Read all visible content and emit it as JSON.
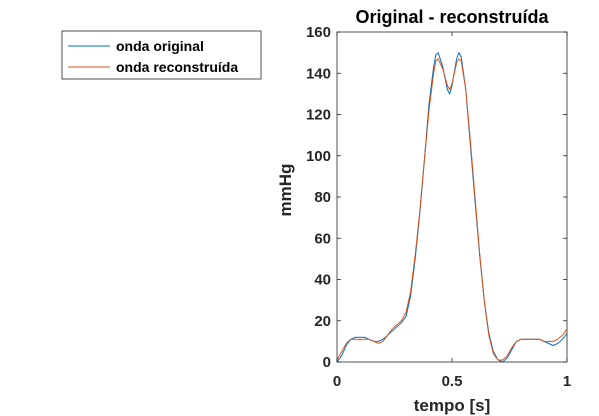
{
  "chart_data": {
    "type": "line",
    "title": "Original - reconstruída",
    "xlabel": "tempo [s]",
    "ylabel": "mmHg",
    "xlim": [
      0,
      1
    ],
    "ylim": [
      0,
      160
    ],
    "xticks": [
      0,
      0.5,
      1
    ],
    "xtick_labels": [
      "0",
      "0.5",
      "1"
    ],
    "yticks": [
      0,
      20,
      40,
      60,
      80,
      100,
      120,
      140,
      160
    ],
    "ytick_labels": [
      "0",
      "20",
      "40",
      "60",
      "80",
      "100",
      "120",
      "140",
      "160"
    ],
    "grid": false,
    "legend_position": "outside-left",
    "series": [
      {
        "name": "onda original",
        "color": "#0072BD",
        "x": [
          0,
          0.02,
          0.04,
          0.06,
          0.08,
          0.1,
          0.12,
          0.14,
          0.16,
          0.18,
          0.2,
          0.22,
          0.24,
          0.26,
          0.28,
          0.3,
          0.32,
          0.34,
          0.36,
          0.38,
          0.4,
          0.42,
          0.43,
          0.44,
          0.46,
          0.48,
          0.49,
          0.5,
          0.52,
          0.53,
          0.54,
          0.56,
          0.58,
          0.6,
          0.62,
          0.64,
          0.66,
          0.68,
          0.7,
          0.72,
          0.74,
          0.76,
          0.78,
          0.8,
          0.82,
          0.84,
          0.86,
          0.88,
          0.9,
          0.92,
          0.94,
          0.96,
          0.98,
          1.0
        ],
        "y": [
          0,
          3,
          8,
          11,
          12,
          12,
          12,
          11,
          10,
          10,
          11,
          13,
          15,
          17,
          19,
          22,
          32,
          50,
          72,
          98,
          125,
          143,
          149,
          150,
          143,
          132,
          130,
          134,
          147,
          150,
          148,
          132,
          105,
          78,
          52,
          30,
          14,
          5,
          1,
          0,
          2,
          6,
          10,
          11,
          11,
          11,
          11,
          11,
          10,
          9,
          8,
          9,
          11,
          14
        ]
      },
      {
        "name": "onda reconstruída",
        "color": "#D95319",
        "x": [
          0,
          0.02,
          0.04,
          0.06,
          0.08,
          0.1,
          0.12,
          0.14,
          0.16,
          0.18,
          0.2,
          0.22,
          0.24,
          0.26,
          0.28,
          0.3,
          0.32,
          0.34,
          0.36,
          0.38,
          0.4,
          0.42,
          0.43,
          0.44,
          0.46,
          0.48,
          0.49,
          0.5,
          0.52,
          0.53,
          0.54,
          0.56,
          0.58,
          0.6,
          0.62,
          0.64,
          0.66,
          0.68,
          0.7,
          0.72,
          0.74,
          0.76,
          0.78,
          0.8,
          0.82,
          0.84,
          0.86,
          0.88,
          0.9,
          0.92,
          0.94,
          0.96,
          0.98,
          1.0
        ],
        "y": [
          1,
          5,
          9,
          11,
          11,
          11,
          11,
          11,
          10,
          9,
          10,
          13,
          16,
          18,
          20,
          24,
          34,
          52,
          73,
          98,
          122,
          140,
          146,
          147,
          142,
          134,
          132,
          135,
          145,
          147,
          146,
          132,
          107,
          80,
          53,
          30,
          13,
          4,
          1,
          1,
          3,
          7,
          10,
          11,
          11,
          11,
          11,
          11,
          10,
          10,
          10,
          11,
          13,
          16
        ]
      }
    ]
  }
}
